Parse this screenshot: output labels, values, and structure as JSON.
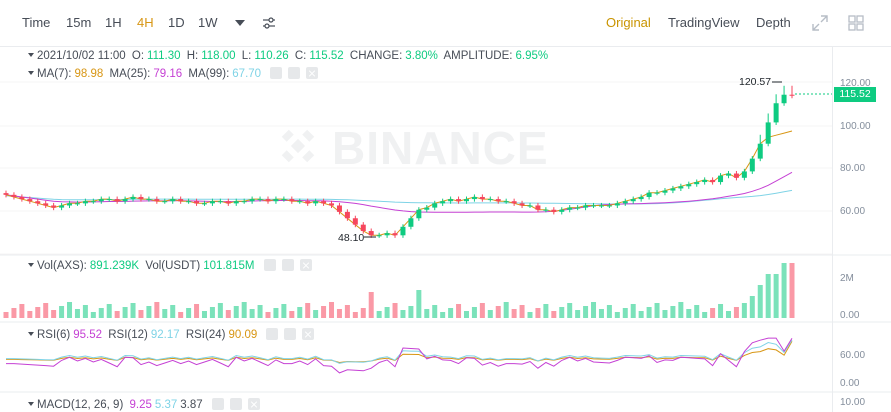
{
  "toolbar": {
    "intervals": [
      "Time",
      "15m",
      "1H",
      "4H",
      "1D",
      "1W"
    ],
    "active_interval": "4H",
    "views": [
      "Original",
      "TradingView",
      "Depth"
    ],
    "active_view": "Original"
  },
  "watermark": "BINANCE",
  "ohlc": {
    "date": "2021/10/02 11:00",
    "o_label": "O:",
    "o": "111.30",
    "h_label": "H:",
    "h": "118.00",
    "l_label": "L:",
    "l": "110.26",
    "c_label": "C:",
    "c": "115.52",
    "change_label": "CHANGE:",
    "change": "3.80%",
    "amplitude_label": "AMPLITUDE:",
    "amplitude": "6.95%"
  },
  "ma": {
    "ma7_label": "MA(7):",
    "ma7": "98.98",
    "ma25_label": "MA(25):",
    "ma25": "79.16",
    "ma99_label": "MA(99):",
    "ma99": "67.70"
  },
  "price_axis": [
    "120.00",
    "100.00",
    "80.00",
    "60.00"
  ],
  "last_price": "115.52",
  "high_marker": "120.57",
  "low_marker": "48.10",
  "volume": {
    "axs_label": "Vol(AXS):",
    "axs": "891.239K",
    "usdt_label": "Vol(USDT)",
    "usdt": "101.815M",
    "axis": [
      "2M",
      "0.00"
    ]
  },
  "rsi": {
    "rsi6_label": "RSI(6)",
    "rsi6": "95.52",
    "rsi12_label": "RSI(12)",
    "rsi12": "92.17",
    "rsi24_label": "RSI(24)",
    "rsi24": "90.09",
    "axis": [
      "60.00",
      "0.00"
    ]
  },
  "macd": {
    "label": "MACD(12, 26, 9)",
    "v1": "9.25",
    "v2": "5.37",
    "v3": "3.87",
    "axis": [
      "10.00"
    ]
  },
  "colors": {
    "up": "#0ecb81",
    "down": "#f6465d",
    "accent": "#d89614",
    "ma7": "#d89614",
    "ma25": "#c540d4",
    "ma99": "#7fd3e6"
  },
  "chart_data": {
    "type": "candlestick",
    "interval": "4H",
    "y_axis": {
      "min": 40,
      "max": 125,
      "ticks": [
        60,
        80,
        100,
        120
      ]
    },
    "close": [
      69,
      68,
      67,
      66,
      65,
      64,
      63,
      64,
      65,
      65,
      66,
      66,
      67,
      67,
      66,
      67,
      68,
      67,
      67,
      66,
      66,
      67,
      66,
      66,
      65,
      65,
      66,
      66,
      65,
      66,
      66,
      67,
      67,
      66,
      67,
      67,
      66,
      66,
      65,
      66,
      65,
      64,
      61,
      58,
      55,
      52,
      50,
      50,
      51,
      50,
      54,
      58,
      62,
      63,
      65,
      66,
      67,
      66,
      67,
      68,
      67,
      67,
      66,
      66,
      65,
      64,
      64,
      62,
      62,
      61,
      62,
      63,
      63,
      64,
      64,
      64,
      64,
      65,
      66,
      67,
      68,
      70,
      70,
      71,
      72,
      73,
      74,
      75,
      76,
      75,
      78,
      79,
      77,
      80,
      86,
      93,
      103,
      112,
      116,
      115.52
    ],
    "ma7": [
      69,
      68,
      67,
      66,
      65,
      64,
      63,
      64,
      65,
      65,
      66,
      66,
      67,
      67,
      66,
      67,
      68,
      67,
      67,
      66,
      66,
      67,
      66,
      66,
      65,
      65,
      66,
      66,
      65,
      66,
      66,
      67,
      67,
      66,
      67,
      67,
      66,
      66,
      65,
      66,
      65,
      64,
      61,
      58,
      55,
      52,
      50,
      50,
      51,
      50,
      54,
      58,
      62,
      63,
      65,
      66,
      67,
      66,
      67,
      68,
      67,
      67,
      66,
      66,
      65,
      64,
      64,
      62,
      62,
      61,
      62,
      63,
      63,
      64,
      64,
      64,
      64,
      65,
      66,
      67,
      68,
      70,
      70,
      71,
      72,
      73,
      74,
      75,
      76,
      75,
      78,
      79,
      77,
      80,
      86,
      93,
      96,
      97,
      98,
      98.98
    ],
    "ma25_last": 79.16,
    "ma99_last": 67.7,
    "volume_axis_max": "2M",
    "rsi_last": [
      95.52,
      92.17,
      90.09
    ]
  }
}
